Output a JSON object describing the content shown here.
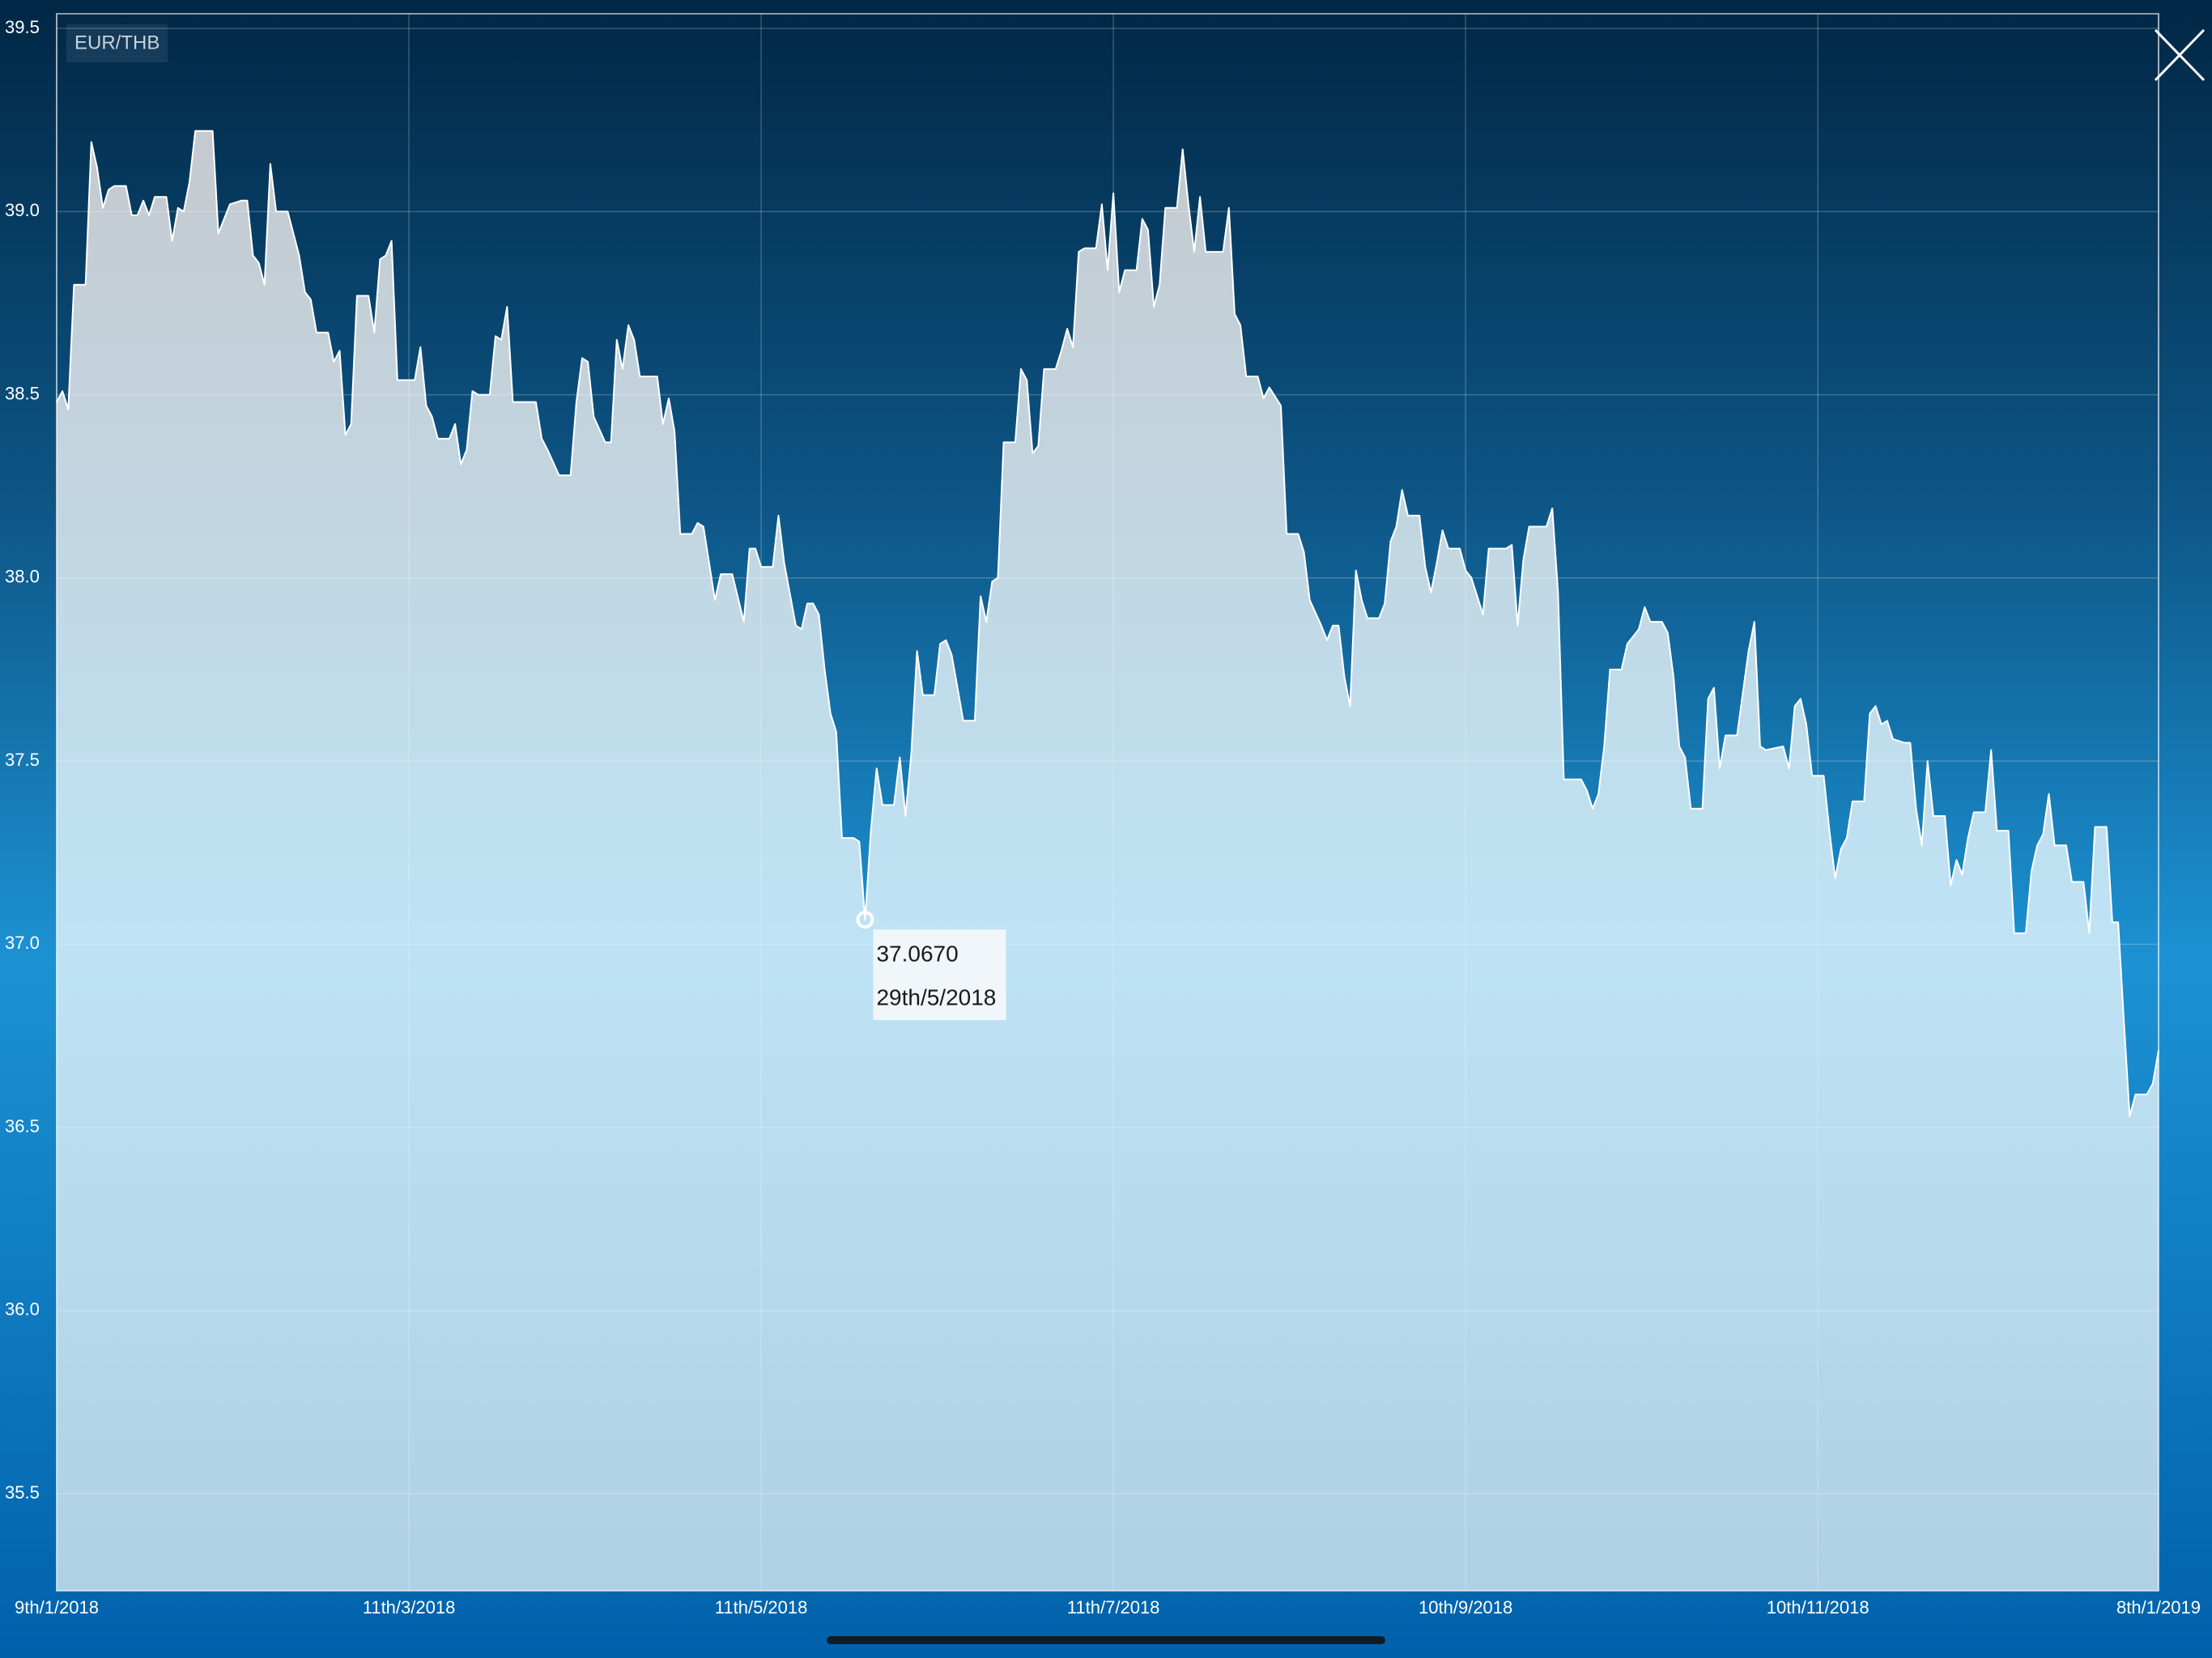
{
  "chart_data": {
    "type": "area",
    "title": "EUR/THB",
    "color": "#ffffff",
    "grid": true,
    "x": [
      "2018-01-09",
      "2018-01-10",
      "2018-01-11",
      "2018-01-12",
      "2018-01-14",
      "2018-01-15",
      "2018-01-16",
      "2018-01-17",
      "2018-01-18",
      "2018-01-19",
      "2018-01-21",
      "2018-01-22",
      "2018-01-23",
      "2018-01-24",
      "2018-01-25",
      "2018-01-26",
      "2018-01-28",
      "2018-01-29",
      "2018-01-30",
      "2018-01-31",
      "2018-02-01",
      "2018-02-02",
      "2018-02-05",
      "2018-02-06",
      "2018-02-07",
      "2018-02-08",
      "2018-02-10",
      "2018-02-11",
      "2018-02-12",
      "2018-02-13",
      "2018-02-14",
      "2018-02-15",
      "2018-02-16",
      "2018-02-18",
      "2018-02-20",
      "2018-02-21",
      "2018-02-22",
      "2018-02-23",
      "2018-02-25",
      "2018-02-26",
      "2018-02-27",
      "2018-02-28",
      "2018-03-01",
      "2018-03-02",
      "2018-03-04",
      "2018-03-05",
      "2018-03-06",
      "2018-03-07",
      "2018-03-08",
      "2018-03-09",
      "2018-03-12",
      "2018-03-13",
      "2018-03-14",
      "2018-03-15",
      "2018-03-16",
      "2018-03-18",
      "2018-03-19",
      "2018-03-20",
      "2018-03-21",
      "2018-03-22",
      "2018-03-23",
      "2018-03-25",
      "2018-03-26",
      "2018-03-27",
      "2018-03-28",
      "2018-03-29",
      "2018-04-02",
      "2018-04-03",
      "2018-04-04",
      "2018-04-06",
      "2018-04-08",
      "2018-04-09",
      "2018-04-10",
      "2018-04-11",
      "2018-04-12",
      "2018-04-14",
      "2018-04-15",
      "2018-04-16",
      "2018-04-17",
      "2018-04-18",
      "2018-04-19",
      "2018-04-20",
      "2018-04-23",
      "2018-04-24",
      "2018-04-25",
      "2018-04-26",
      "2018-04-27",
      "2018-04-29",
      "2018-04-30",
      "2018-05-01",
      "2018-05-03",
      "2018-05-04",
      "2018-05-06",
      "2018-05-08",
      "2018-05-09",
      "2018-05-10",
      "2018-05-11",
      "2018-05-13",
      "2018-05-14",
      "2018-05-15",
      "2018-05-17",
      "2018-05-18",
      "2018-05-19",
      "2018-05-20",
      "2018-05-21",
      "2018-05-22",
      "2018-05-23",
      "2018-05-24",
      "2018-05-25",
      "2018-05-27",
      "2018-05-28",
      "2018-05-29",
      "2018-05-30",
      "2018-05-31",
      "2018-06-01",
      "2018-06-03",
      "2018-06-04",
      "2018-06-05",
      "2018-06-06",
      "2018-06-07",
      "2018-06-08",
      "2018-06-10",
      "2018-06-11",
      "2018-06-12",
      "2018-06-13",
      "2018-06-14",
      "2018-06-15",
      "2018-06-17",
      "2018-06-18",
      "2018-06-19",
      "2018-06-20",
      "2018-06-21",
      "2018-06-22",
      "2018-06-24",
      "2018-06-25",
      "2018-06-26",
      "2018-06-27",
      "2018-06-28",
      "2018-06-29",
      "2018-07-01",
      "2018-07-02",
      "2018-07-03",
      "2018-07-04",
      "2018-07-05",
      "2018-07-06",
      "2018-07-08",
      "2018-07-09",
      "2018-07-10",
      "2018-07-11",
      "2018-07-12",
      "2018-07-13",
      "2018-07-15",
      "2018-07-16",
      "2018-07-17",
      "2018-07-18",
      "2018-07-19",
      "2018-07-20",
      "2018-07-22",
      "2018-07-23",
      "2018-07-24",
      "2018-07-25",
      "2018-07-26",
      "2018-07-27",
      "2018-07-30",
      "2018-07-31",
      "2018-08-01",
      "2018-08-02",
      "2018-08-03",
      "2018-08-05",
      "2018-08-06",
      "2018-08-07",
      "2018-08-09",
      "2018-08-10",
      "2018-08-12",
      "2018-08-13",
      "2018-08-14",
      "2018-08-16",
      "2018-08-17",
      "2018-08-18",
      "2018-08-19",
      "2018-08-20",
      "2018-08-21",
      "2018-08-22",
      "2018-08-23",
      "2018-08-24",
      "2018-08-26",
      "2018-08-27",
      "2018-08-28",
      "2018-08-29",
      "2018-08-30",
      "2018-08-31",
      "2018-09-02",
      "2018-09-03",
      "2018-09-04",
      "2018-09-05",
      "2018-09-06",
      "2018-09-07",
      "2018-09-09",
      "2018-09-10",
      "2018-09-11",
      "2018-09-13",
      "2018-09-14",
      "2018-09-17",
      "2018-09-18",
      "2018-09-19",
      "2018-09-20",
      "2018-09-21",
      "2018-09-24",
      "2018-09-25",
      "2018-09-26",
      "2018-09-27",
      "2018-09-30",
      "2018-10-01",
      "2018-10-02",
      "2018-10-03",
      "2018-10-04",
      "2018-10-05",
      "2018-10-07",
      "2018-10-08",
      "2018-10-09",
      "2018-10-10",
      "2018-10-11",
      "2018-10-12",
      "2018-10-14",
      "2018-10-15",
      "2018-10-16",
      "2018-10-17",
      "2018-10-18",
      "2018-10-19",
      "2018-10-21",
      "2018-10-22",
      "2018-10-23",
      "2018-10-24",
      "2018-10-25",
      "2018-10-27",
      "2018-10-29",
      "2018-10-30",
      "2018-10-31",
      "2018-11-01",
      "2018-11-04",
      "2018-11-05",
      "2018-11-06",
      "2018-11-07",
      "2018-11-08",
      "2018-11-09",
      "2018-11-11",
      "2018-11-12",
      "2018-11-13",
      "2018-11-14",
      "2018-11-15",
      "2018-11-16",
      "2018-11-18",
      "2018-11-19",
      "2018-11-20",
      "2018-11-21",
      "2018-11-22",
      "2018-11-23",
      "2018-11-25",
      "2018-11-26",
      "2018-11-27",
      "2018-11-28",
      "2018-11-29",
      "2018-11-30",
      "2018-12-02",
      "2018-12-03",
      "2018-12-04",
      "2018-12-05",
      "2018-12-06",
      "2018-12-07",
      "2018-12-09",
      "2018-12-10",
      "2018-12-11",
      "2018-12-13",
      "2018-12-14",
      "2018-12-16",
      "2018-12-17",
      "2018-12-18",
      "2018-12-19",
      "2018-12-20",
      "2018-12-21",
      "2018-12-23",
      "2018-12-24",
      "2018-12-26",
      "2018-12-27",
      "2018-12-28",
      "2018-12-30",
      "2018-12-31",
      "2019-01-01",
      "2019-01-02",
      "2019-01-03",
      "2019-01-04",
      "2019-01-06",
      "2019-01-07",
      "2019-01-08"
    ],
    "values": [
      38.48,
      38.51,
      38.46,
      38.8,
      38.8,
      39.19,
      39.12,
      39.01,
      39.06,
      39.07,
      39.07,
      38.99,
      38.99,
      39.03,
      38.99,
      39.04,
      39.04,
      38.92,
      39.01,
      39.0,
      39.08,
      39.22,
      39.22,
      38.94,
      38.98,
      39.02,
      39.03,
      39.03,
      38.88,
      38.86,
      38.8,
      39.13,
      39.0,
      39.0,
      38.88,
      38.78,
      38.76,
      38.67,
      38.67,
      38.59,
      38.62,
      38.39,
      38.42,
      38.77,
      38.77,
      38.67,
      38.87,
      38.88,
      38.92,
      38.54,
      38.54,
      38.63,
      38.47,
      38.44,
      38.38,
      38.38,
      38.42,
      38.31,
      38.35,
      38.51,
      38.5,
      38.5,
      38.66,
      38.65,
      38.74,
      38.48,
      38.48,
      38.38,
      38.35,
      38.28,
      38.28,
      38.48,
      38.6,
      38.59,
      38.44,
      38.37,
      38.37,
      38.65,
      38.57,
      38.69,
      38.65,
      38.55,
      38.55,
      38.42,
      38.49,
      38.4,
      38.12,
      38.12,
      38.15,
      38.14,
      37.94,
      38.01,
      38.01,
      37.88,
      38.08,
      38.08,
      38.03,
      38.03,
      38.17,
      38.04,
      37.87,
      37.86,
      37.93,
      37.93,
      37.9,
      37.75,
      37.63,
      37.58,
      37.29,
      37.29,
      37.28,
      37.067,
      37.31,
      37.48,
      37.38,
      37.38,
      37.51,
      37.35,
      37.52,
      37.8,
      37.68,
      37.68,
      37.82,
      37.83,
      37.79,
      37.7,
      37.61,
      37.61,
      37.95,
      37.88,
      37.99,
      38.0,
      38.37,
      38.37,
      38.57,
      38.54,
      38.34,
      38.36,
      38.57,
      38.57,
      38.62,
      38.68,
      38.63,
      38.89,
      38.9,
      38.9,
      39.02,
      38.84,
      39.05,
      38.78,
      38.84,
      38.84,
      38.98,
      38.95,
      38.74,
      38.8,
      39.01,
      39.01,
      39.17,
      39.02,
      38.89,
      39.04,
      38.89,
      38.89,
      39.01,
      38.72,
      38.69,
      38.55,
      38.55,
      38.49,
      38.52,
      38.47,
      38.12,
      38.12,
      38.07,
      37.94,
      37.87,
      37.83,
      37.87,
      37.87,
      37.73,
      37.65,
      38.02,
      37.94,
      37.89,
      37.89,
      37.93,
      38.1,
      38.14,
      38.24,
      38.17,
      38.17,
      38.03,
      37.96,
      38.04,
      38.13,
      38.08,
      38.08,
      38.02,
      38.0,
      37.9,
      38.08,
      38.08,
      38.09,
      37.87,
      38.05,
      38.14,
      38.14,
      38.19,
      37.96,
      37.45,
      37.45,
      37.42,
      37.37,
      37.41,
      37.54,
      37.75,
      37.75,
      37.82,
      37.84,
      37.86,
      37.92,
      37.88,
      37.88,
      37.85,
      37.73,
      37.54,
      37.51,
      37.37,
      37.37,
      37.67,
      37.7,
      37.48,
      37.57,
      37.57,
      37.8,
      37.88,
      37.54,
      37.53,
      37.54,
      37.48,
      37.65,
      37.67,
      37.6,
      37.46,
      37.46,
      37.31,
      37.18,
      37.26,
      37.29,
      37.39,
      37.39,
      37.63,
      37.65,
      37.6,
      37.61,
      37.56,
      37.55,
      37.55,
      37.37,
      37.27,
      37.5,
      37.35,
      37.35,
      37.16,
      37.23,
      37.19,
      37.29,
      37.36,
      37.36,
      37.53,
      37.31,
      37.31,
      37.03,
      37.03,
      37.2,
      37.27,
      37.3,
      37.41,
      37.27,
      37.27,
      37.17,
      37.17,
      37.03,
      37.32,
      37.32,
      37.06,
      37.06,
      36.79,
      36.53,
      36.59,
      36.59,
      36.62,
      36.71
    ],
    "xlim": [
      "2018-01-09",
      "2019-01-08"
    ],
    "xticks": [
      {
        "value": "2018-01-09",
        "label": "9th/1/2018"
      },
      {
        "value": "2018-03-11",
        "label": "11th/3/2018"
      },
      {
        "value": "2018-05-11",
        "label": "11th/5/2018"
      },
      {
        "value": "2018-07-11",
        "label": "11th/7/2018"
      },
      {
        "value": "2018-09-10",
        "label": "10th/9/2018"
      },
      {
        "value": "2018-11-10",
        "label": "10th/11/2018"
      },
      {
        "value": "2019-01-08",
        "label": "8th/1/2019"
      }
    ],
    "ylim": [
      35.235,
      39.54
    ],
    "yticks": [
      35.5,
      {
        "value": 36,
        "label": "36.0"
      },
      36.5,
      {
        "value": 37,
        "label": "37.0"
      },
      37.5,
      {
        "value": 38,
        "label": "38.0"
      },
      38.5,
      {
        "value": 39,
        "label": "39.0"
      },
      39.5
    ],
    "tooltip": {
      "x": "2018-05-29",
      "x_label": "29th/5/2018",
      "value": 37.067,
      "value_label": "37.0670"
    }
  }
}
